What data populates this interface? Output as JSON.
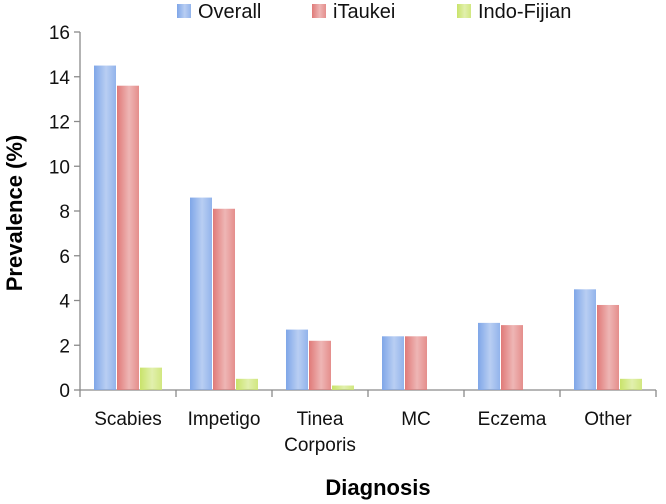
{
  "chart_data": {
    "type": "bar",
    "categories": [
      [
        "Scabies"
      ],
      [
        "Impetigo"
      ],
      [
        "Tinea",
        "Corporis"
      ],
      [
        "MC"
      ],
      [
        "Eczema"
      ],
      [
        "Other"
      ]
    ],
    "series": [
      {
        "name": "Overall",
        "color": "#7fa6e8",
        "values": [
          14.5,
          8.6,
          2.7,
          2.4,
          3.0,
          4.5
        ]
      },
      {
        "name": "iTaukei",
        "color": "#e07a78",
        "values": [
          13.6,
          8.1,
          2.2,
          2.4,
          2.9,
          3.8
        ]
      },
      {
        "name": "Indo-Fijian",
        "color": "#c9e36a",
        "values": [
          1.0,
          0.5,
          0.2,
          0,
          0,
          0.5
        ]
      }
    ],
    "xlabel": "Diagnosis",
    "ylabel": "Prevalence (%)",
    "ylim": [
      0,
      16
    ],
    "yticks": [
      0,
      2,
      4,
      6,
      8,
      10,
      12,
      14,
      16
    ],
    "grid": false,
    "legend": "top"
  }
}
